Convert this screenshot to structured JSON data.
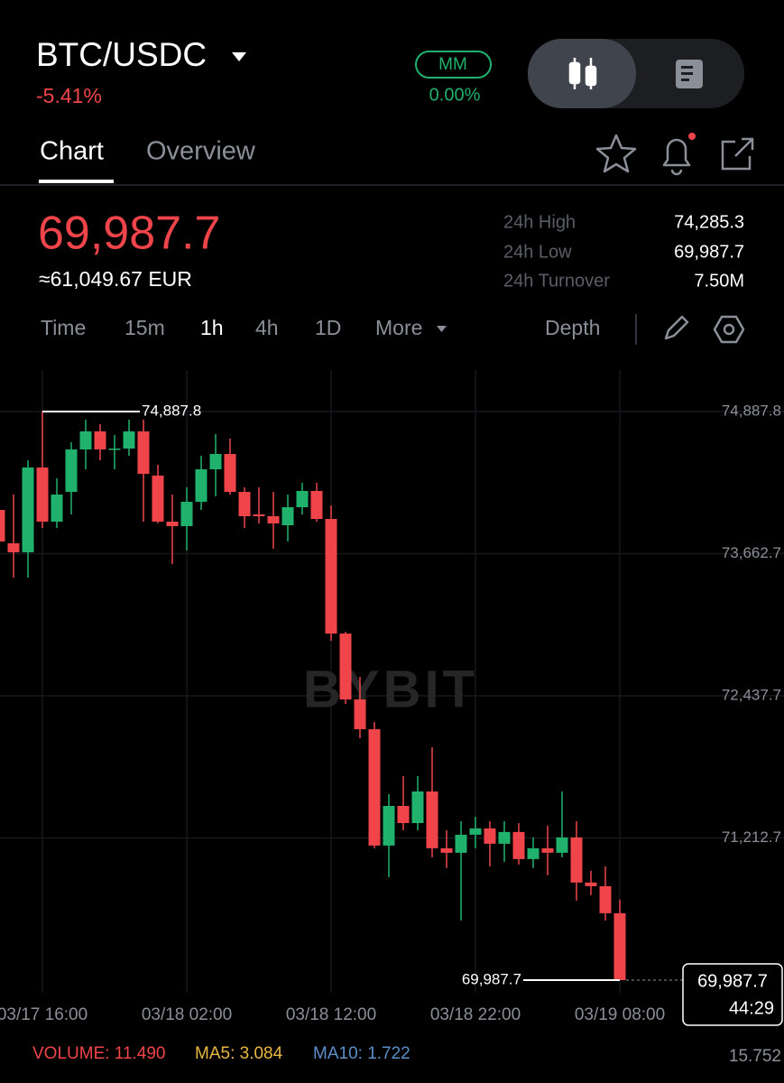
{
  "header": {
    "pair": "BTC/USDC",
    "change": "-5.41%",
    "mm_label": "MM",
    "mm_value": "0.00%"
  },
  "tabs": [
    "Chart",
    "Overview"
  ],
  "price": {
    "last": "69,987.7",
    "fiat": "≈61,049.67 EUR"
  },
  "stats": [
    {
      "label": "24h High",
      "value": "74,285.3"
    },
    {
      "label": "24h Low",
      "value": "69,987.7"
    },
    {
      "label": "24h Turnover",
      "value": "7.50M"
    }
  ],
  "intervals": [
    "Time",
    "15m",
    "1h",
    "4h",
    "1D",
    "More"
  ],
  "depth": "Depth",
  "chart_data": {
    "type": "candlestick",
    "categories": [
      null,
      null,
      null,
      "03/17 16:00",
      null,
      null,
      null,
      null,
      null,
      null,
      null,
      null,
      null,
      "03/18 02:00",
      null,
      null,
      null,
      null,
      null,
      null,
      null,
      null,
      null,
      "03/18 12:00",
      null,
      null,
      null,
      null,
      null,
      null,
      null,
      null,
      null,
      "03/18 22:00",
      null,
      null,
      null,
      null,
      null,
      null,
      null,
      null,
      null,
      "03/19 08:00"
    ],
    "open": [
      74040.0,
      73752.3,
      73674.5,
      74405.6,
      73939.0,
      74195.6,
      74561.1,
      74716.7,
      74561.1,
      74568.9,
      74716.7,
      74335.6,
      73939.0,
      73900.1,
      74110.0,
      74390.0,
      74522.3,
      74195.6,
      74001.1,
      73985.6,
      73907.9,
      74063.4,
      74203.4,
      73962.3,
      72974.4,
      72406.7,
      72150.0,
      71147.5,
      71488.9,
      71341.2,
      71613.4,
      71124.2,
      71085.3,
      71240.9,
      71295.5,
      71163.1,
      71264.4,
      71030.9,
      71124.2,
      71085.3,
      71217.5,
      70828.6,
      70797.5,
      70564.1
    ],
    "high": [
      74078.9,
      74172.2,
      74467.8,
      74887.8,
      74312.2,
      74623.4,
      74817.8,
      74778.9,
      74685.6,
      74817.8,
      74817.8,
      74428.9,
      74172.2,
      74234.5,
      74506.7,
      74693.4,
      74654.5,
      74234.5,
      74234.5,
      74195.6,
      74172.2,
      74273.4,
      74273.4,
      74078.9,
      72990.0,
      72601.1,
      72212.2,
      71590.0,
      71745.6,
      71745.6,
      71995.0,
      71279.0,
      71356.7,
      71395.6,
      71356.7,
      71356.7,
      71341.2,
      71217.5,
      71319.0,
      71613.4,
      71356.7,
      70929.7,
      70968.6,
      70680.8
    ],
    "low": [
      73456.7,
      73456.7,
      73456.7,
      73884.5,
      73884.5,
      74001.1,
      74390.0,
      74467.8,
      74390.0,
      74506.7,
      73939.0,
      73923.4,
      73573.4,
      73690.0,
      74040.0,
      74156.7,
      74172.2,
      73884.5,
      73923.4,
      73705.6,
      73767.8,
      74001.1,
      73939.0,
      72912.2,
      72367.8,
      72072.2,
      71124.2,
      70875.3,
      71279.0,
      71279.0,
      71046.4,
      70953.0,
      70501.9,
      71124.2,
      70968.6,
      71007.5,
      70984.2,
      70953.0,
      70890.8,
      71046.4,
      70673.0,
      70719.7,
      70501.9,
      69987.7
    ],
    "close": [
      73767.8,
      73674.5,
      74405.6,
      73939.0,
      74172.2,
      74561.1,
      74716.7,
      74561.1,
      74568.9,
      74716.7,
      74351.1,
      73939.0,
      73900.1,
      74110.0,
      74390.0,
      74522.3,
      74195.6,
      73985.6,
      73985.6,
      73923.4,
      74063.4,
      74203.4,
      73962.3,
      72974.4,
      72406.7,
      72150.0,
      71147.5,
      71488.9,
      71341.2,
      71613.4,
      71124.2,
      71085.3,
      71240.9,
      71295.5,
      71163.1,
      71264.4,
      71030.9,
      71124.2,
      71085.3,
      71217.5,
      70828.6,
      70797.5,
      70564.1,
      69987.7
    ],
    "up_color": "#20b26c",
    "down_color": "#ef454a",
    "ylim": [
      69878.9,
      75245.6
    ],
    "yticks": [
      {
        "value": 74887.8,
        "label": "74,887.8"
      },
      {
        "value": 73662.7,
        "label": "73,662.7"
      },
      {
        "value": 72437.7,
        "label": "72,437.7"
      },
      {
        "value": 71212.7,
        "label": "71,212.7"
      }
    ],
    "grid": true,
    "high_marker": {
      "value": 74887.8,
      "label": "74,887.8"
    },
    "low_marker": {
      "value": 69987.7,
      "label": "69,987.7"
    },
    "last_price": {
      "value": 69987.7,
      "label": "69,987.7"
    },
    "countdown": "44:29",
    "watermark": "BYBIT"
  },
  "indicators": {
    "volume": "VOLUME: 11.490",
    "ma5": "MA5: 3.084",
    "ma10": "MA10: 1.722",
    "axis_max": "15.752"
  }
}
